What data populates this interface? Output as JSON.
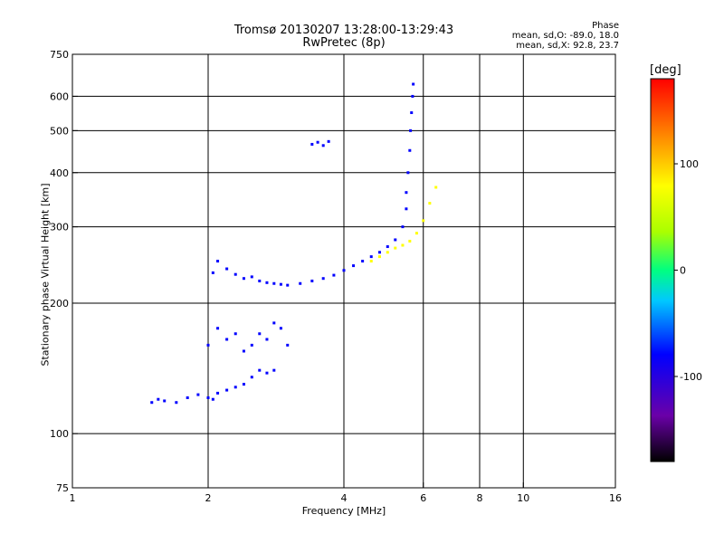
{
  "chart_data": {
    "type": "scatter",
    "title": "Tromsø 20130207 13:28:00-13:29:43",
    "subtitle": "RwPretec (8p)",
    "xlabel": "Frequency [MHz]",
    "ylabel": "Stationary phase Virtual Height [km]",
    "x_scale": "log",
    "y_scale": "log",
    "xlim": [
      1,
      16
    ],
    "ylim": [
      75,
      750
    ],
    "x_ticks": [
      1,
      2,
      4,
      6,
      8,
      10,
      16
    ],
    "x_tick_labels": [
      "1",
      "2",
      "4",
      "6",
      "8",
      "10",
      "16"
    ],
    "y_ticks": [
      75,
      100,
      200,
      300,
      400,
      500,
      600,
      750
    ],
    "y_tick_labels": [
      "75",
      "100",
      "200",
      "300",
      "400",
      "500",
      "600",
      "750"
    ],
    "grid": true,
    "phase_stats": {
      "title": "Phase",
      "o_mode": "mean, sd,O: -89.0, 18.0",
      "x_mode": "mean, sd,X: 92.8, 23.7"
    },
    "colorbar": {
      "unit": "[deg]",
      "range": [
        -180,
        180
      ],
      "ticks": [
        100,
        0,
        -100
      ],
      "tick_labels": [
        "100",
        "0",
        "-100"
      ],
      "colors": [
        "#000000",
        "#6a00a8",
        "#0000ff",
        "#00c8ff",
        "#00ff80",
        "#aaff00",
        "#ffff00",
        "#ff8000",
        "#ff0000"
      ]
    },
    "series": [
      {
        "x": [
          1.5,
          1.55,
          1.6,
          1.7,
          1.8,
          1.9,
          2.0,
          2.05,
          2.1,
          2.2,
          2.3,
          2.4,
          2.5,
          2.6,
          2.7,
          2.8
        ],
        "y": [
          118,
          120,
          119,
          118,
          121,
          123,
          121,
          120,
          124,
          126,
          128,
          130,
          135,
          140,
          138,
          140
        ],
        "phase": -110
      },
      {
        "x": [
          2.0,
          2.1,
          2.2,
          2.3,
          2.4,
          2.5,
          2.6,
          2.7,
          2.8,
          2.9,
          3.0
        ],
        "y": [
          160,
          175,
          165,
          170,
          155,
          160,
          170,
          165,
          180,
          175,
          160
        ],
        "phase": -110
      },
      {
        "x": [
          2.05,
          2.1,
          2.2,
          2.3,
          2.4,
          2.5,
          2.6,
          2.7,
          2.8,
          2.9,
          3.0,
          3.2,
          3.4,
          3.6,
          3.8,
          4.0,
          4.2,
          4.4,
          4.6,
          4.8,
          5.0,
          5.2,
          5.4,
          5.5
        ],
        "y": [
          235,
          250,
          240,
          233,
          228,
          230,
          225,
          223,
          222,
          221,
          220,
          222,
          225,
          228,
          232,
          238,
          244,
          250,
          256,
          262,
          270,
          280,
          300,
          330
        ],
        "phase": -110
      },
      {
        "x": [
          5.5,
          5.55,
          5.6,
          5.62,
          5.65,
          5.68,
          5.7
        ],
        "y": [
          360,
          400,
          450,
          500,
          550,
          600,
          640
        ],
        "phase": -110
      },
      {
        "x": [
          4.6,
          4.8,
          5.0,
          5.2,
          5.4,
          5.6,
          5.8,
          6.0,
          6.2,
          6.4
        ],
        "y": [
          250,
          256,
          262,
          268,
          272,
          278,
          290,
          310,
          340,
          370
        ],
        "phase": 90
      },
      {
        "x": [
          3.4,
          3.5,
          3.6,
          3.7
        ],
        "y": [
          465,
          470,
          462,
          472
        ],
        "phase": -80
      }
    ]
  }
}
